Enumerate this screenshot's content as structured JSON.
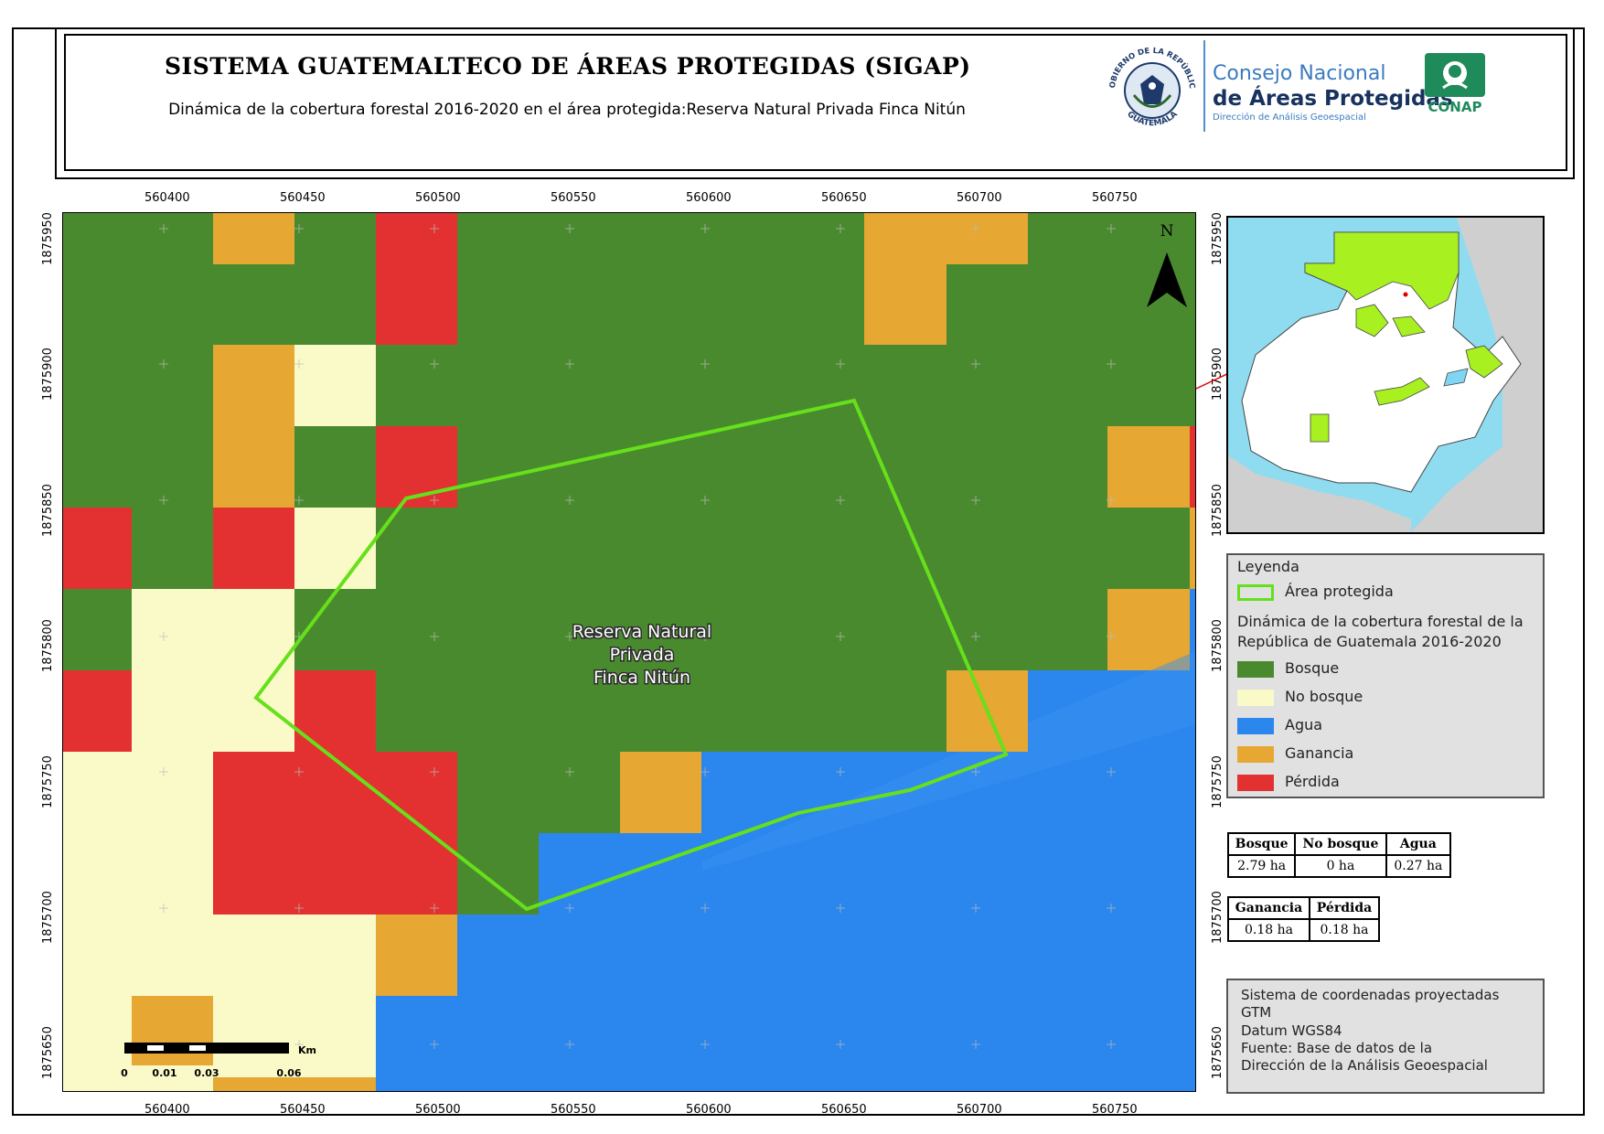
{
  "header": {
    "title": "SISTEMA GUATEMALTECO DE ÁREAS PROTEGIDAS  (SIGAP)",
    "subtitle": "Dinámica de la cobertura forestal 2016-2020 en el área protegida:Reserva Natural Privada Finca Nitún"
  },
  "logos": {
    "guatemala_seal_text_top": "GOBIERNO DE LA REPÚBLICA",
    "guatemala_seal_text_bottom": "GUATEMALA",
    "conap_line1": "Consejo Nacional",
    "conap_line2": "de Áreas Protegidas",
    "conap_line3": "Dirección de Análisis Geoespacial",
    "conap_badge": "CONAP"
  },
  "map": {
    "label_line1": "Reserva Natural",
    "label_line2": "Privada",
    "label_line3": "Finca Nitún",
    "north_label": "N",
    "x_ticks": [
      "560400",
      "560450",
      "560500",
      "560550",
      "560600",
      "560650",
      "560700",
      "560750"
    ],
    "y_ticks": [
      "1875950",
      "1875900",
      "1875850",
      "1875800",
      "1875750",
      "1875700",
      "1875650"
    ],
    "scale_unit": "Km",
    "scale_labels": [
      "0",
      "0.01",
      "0.03",
      "0.06"
    ]
  },
  "legend": {
    "title": "Leyenda",
    "protected_area": "Área protegida",
    "dynamics_title": "Dinámica de la cobertura forestal de la República de Guatemala 2016-2020",
    "classes": [
      {
        "label": "Bosque",
        "color": "#4a8a2f"
      },
      {
        "label": "No bosque",
        "color": "#fafac8"
      },
      {
        "label": "Agua",
        "color": "#2b86ee"
      },
      {
        "label": "Ganancia",
        "color": "#e6a733"
      },
      {
        "label": "Pérdida",
        "color": "#e33131"
      }
    ],
    "protected_area_color": "#66e01a"
  },
  "stats": {
    "table1_headers": [
      "Bosque",
      "No bosque",
      "Agua"
    ],
    "table1_values": [
      "2.79 ha",
      "0 ha",
      "0.27 ha"
    ],
    "table2_headers": [
      "Ganancia",
      "Pérdida"
    ],
    "table2_values": [
      "0.18 ha",
      "0.18 ha"
    ]
  },
  "info": {
    "line1": "Sistema de coordenadas proyectadas",
    "line2": "GTM",
    "line3": "Datum WGS84",
    "line4": "Fuente: Base de datos de la",
    "line5": "Dirección de la Análisis Geoespacial"
  }
}
